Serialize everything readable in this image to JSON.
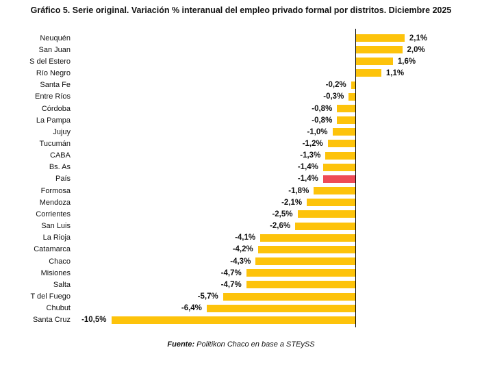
{
  "title": "Gráfico 5. Serie original. Variación % interanual del empleo privado formal por distritos. Diciembre 2025",
  "source": {
    "label": "Fuente:",
    "text": " Politikon Chaco en base a STEySS"
  },
  "colors": {
    "bar": "#FDC30B",
    "highlight": "#EE4B56",
    "axis": "#000000",
    "text": "#111111"
  },
  "chart_data": {
    "type": "bar",
    "orientation": "horizontal",
    "unit": "%",
    "decimal_separator": ",",
    "grid": false,
    "legend": false,
    "xlim": [
      -10.5,
      2.1
    ],
    "highlight_category": "País",
    "highlight_meaning": "national total",
    "categories": [
      "Neuquén",
      "San Juan",
      "S del Estero",
      "Río Negro",
      "Santa Fe",
      "Entre Ríos",
      "Córdoba",
      "La Pampa",
      "Jujuy",
      "Tucumán",
      "CABA",
      "Bs. As",
      "País",
      "Formosa",
      "Mendoza",
      "Corrientes",
      "San Luis",
      "La Rioja",
      "Catamarca",
      "Chaco",
      "Misiones",
      "Salta",
      "T del Fuego",
      "Chubut",
      "Santa Cruz"
    ],
    "values": [
      2.1,
      2.0,
      1.6,
      1.1,
      -0.2,
      -0.3,
      -0.8,
      -0.8,
      -1.0,
      -1.2,
      -1.3,
      -1.4,
      -1.4,
      -1.8,
      -2.1,
      -2.5,
      -2.6,
      -4.1,
      -4.2,
      -4.3,
      -4.7,
      -4.7,
      -5.7,
      -6.4,
      -10.5
    ],
    "value_labels": [
      "2,1%",
      "2,0%",
      "1,6%",
      "1,1%",
      "-0,2%",
      "-0,3%",
      "-0,8%",
      "-0,8%",
      "-1,0%",
      "-1,2%",
      "-1,3%",
      "-1,4%",
      "-1,4%",
      "-1,8%",
      "-2,1%",
      "-2,5%",
      "-2,6%",
      "-4,1%",
      "-4,2%",
      "-4,3%",
      "-4,7%",
      "-4,7%",
      "-5,7%",
      "-6,4%",
      "-10,5%"
    ]
  }
}
